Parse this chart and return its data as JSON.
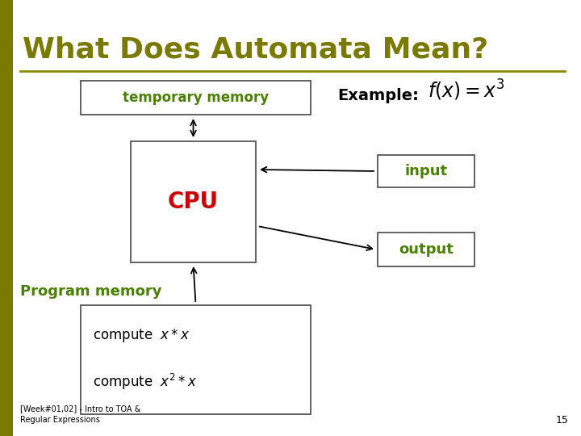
{
  "title": "What Does Automata Mean?",
  "title_color": "#7a7a00",
  "title_fontsize": 26,
  "bg_color": "#ffffff",
  "left_bar_color": "#7a7a00",
  "footer_text": "[Week#01,02] - Intro to TOA &\nRegular Expressions",
  "page_number": "15",
  "temp_memory_label": "temporary memory",
  "cpu_label": "CPU",
  "cpu_color": "#cc0000",
  "program_memory_label": "Program memory",
  "program_memory_color": "#4a8000",
  "input_label": "input",
  "output_label": "output",
  "box_label_color": "#4a8000",
  "example_text": "Example:",
  "separator_color": "#8a8a00"
}
